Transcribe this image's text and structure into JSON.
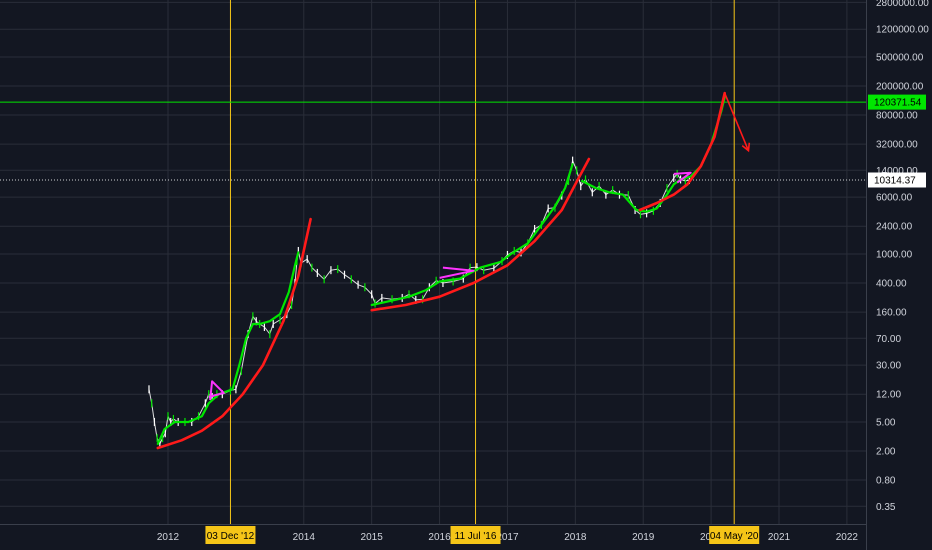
{
  "chart_data": {
    "type": "line",
    "scale": "log",
    "grid": true,
    "y_tick_labels": [
      "2800000.00",
      "1200000.00",
      "500000.00",
      "200000.00",
      "80000.00",
      "32000.00",
      "14000.00",
      "6000.00",
      "2400.00",
      "1000.00",
      "400.00",
      "160.00",
      "70.00",
      "30.00",
      "12.00",
      "5.00",
      "2.00",
      "0.80",
      "0.35"
    ],
    "x_tick_labels": [
      "2012",
      "2014",
      "2015",
      "2016",
      "2017",
      "2018",
      "2019",
      "2020",
      "2021",
      "2022"
    ],
    "x_highlight_labels": [
      {
        "label": "03 Dec '12",
        "color": "#f5c518"
      },
      {
        "label": "11 Jul '16",
        "color": "#f5c518"
      },
      {
        "label": "04 May '20",
        "color": "#f5c518"
      }
    ],
    "horizontal_levels": [
      {
        "label": "120371.54",
        "value": 120371.54,
        "color": "#00e600"
      },
      {
        "label": "10314.37",
        "value": 10314.37,
        "color": "#ffffff"
      }
    ],
    "series": [
      {
        "style": "price",
        "color": "#ffffff",
        "points": [
          [
            2011.72,
            14
          ],
          [
            2011.76,
            9
          ],
          [
            2011.8,
            5
          ],
          [
            2011.84,
            3
          ],
          [
            2011.88,
            2.5
          ],
          [
            2011.92,
            3
          ],
          [
            2011.96,
            3.5
          ],
          [
            2012.0,
            6
          ],
          [
            2012.04,
            5
          ],
          [
            2012.08,
            5.5
          ],
          [
            2012.15,
            5
          ],
          [
            2012.25,
            5
          ],
          [
            2012.35,
            5
          ],
          [
            2012.45,
            6
          ],
          [
            2012.55,
            9
          ],
          [
            2012.6,
            12
          ],
          [
            2012.65,
            11
          ],
          [
            2012.72,
            12
          ],
          [
            2012.8,
            12
          ],
          [
            2012.92,
            13.5
          ],
          [
            2013.0,
            14
          ],
          [
            2013.08,
            25
          ],
          [
            2013.18,
            80
          ],
          [
            2013.25,
            140
          ],
          [
            2013.3,
            120
          ],
          [
            2013.35,
            110
          ],
          [
            2013.42,
            100
          ],
          [
            2013.5,
            80
          ],
          [
            2013.55,
            110
          ],
          [
            2013.65,
            125
          ],
          [
            2013.75,
            150
          ],
          [
            2013.82,
            200
          ],
          [
            2013.87,
            400
          ],
          [
            2013.9,
            800
          ],
          [
            2013.92,
            1100
          ],
          [
            2013.96,
            750
          ],
          [
            2014.05,
            850
          ],
          [
            2014.12,
            650
          ],
          [
            2014.2,
            550
          ],
          [
            2014.3,
            450
          ],
          [
            2014.4,
            600
          ],
          [
            2014.5,
            620
          ],
          [
            2014.6,
            520
          ],
          [
            2014.7,
            450
          ],
          [
            2014.8,
            380
          ],
          [
            2014.9,
            350
          ],
          [
            2015.0,
            280
          ],
          [
            2015.05,
            210
          ],
          [
            2015.15,
            250
          ],
          [
            2015.3,
            240
          ],
          [
            2015.45,
            250
          ],
          [
            2015.55,
            280
          ],
          [
            2015.65,
            235
          ],
          [
            2015.75,
            240
          ],
          [
            2015.85,
            350
          ],
          [
            2015.95,
            430
          ],
          [
            2016.05,
            400
          ],
          [
            2016.2,
            420
          ],
          [
            2016.35,
            460
          ],
          [
            2016.45,
            650
          ],
          [
            2016.55,
            660
          ],
          [
            2016.65,
            600
          ],
          [
            2016.8,
            640
          ],
          [
            2016.92,
            800
          ],
          [
            2017.0,
            970
          ],
          [
            2017.1,
            1100
          ],
          [
            2017.2,
            1050
          ],
          [
            2017.3,
            1400
          ],
          [
            2017.4,
            2200
          ],
          [
            2017.5,
            2500
          ],
          [
            2017.6,
            4200
          ],
          [
            2017.7,
            4300
          ],
          [
            2017.8,
            6300
          ],
          [
            2017.9,
            10000
          ],
          [
            2017.96,
            19000
          ],
          [
            2018.02,
            14000
          ],
          [
            2018.08,
            8500
          ],
          [
            2018.15,
            10500
          ],
          [
            2018.25,
            7000
          ],
          [
            2018.35,
            8500
          ],
          [
            2018.45,
            6500
          ],
          [
            2018.55,
            7500
          ],
          [
            2018.65,
            6500
          ],
          [
            2018.78,
            6400
          ],
          [
            2018.88,
            4000
          ],
          [
            2018.96,
            3500
          ],
          [
            2019.05,
            3600
          ],
          [
            2019.15,
            3900
          ],
          [
            2019.25,
            5000
          ],
          [
            2019.35,
            8000
          ],
          [
            2019.45,
            11000
          ],
          [
            2019.5,
            12500
          ],
          [
            2019.55,
            10500
          ],
          [
            2019.62,
            10000
          ],
          [
            2019.68,
            10300
          ]
        ]
      },
      {
        "style": "trend",
        "color": "#00e600",
        "points": [
          [
            2011.85,
            2.5
          ],
          [
            2011.95,
            4
          ],
          [
            2012.1,
            5
          ],
          [
            2012.3,
            5
          ],
          [
            2012.5,
            6
          ],
          [
            2012.6,
            9
          ],
          [
            2012.75,
            12
          ],
          [
            2012.95,
            14
          ],
          [
            2013.05,
            30
          ],
          [
            2013.15,
            70
          ],
          [
            2013.25,
            110
          ],
          [
            2013.35,
            110
          ],
          [
            2013.5,
            120
          ],
          [
            2013.65,
            150
          ],
          [
            2013.78,
            300
          ],
          [
            2013.87,
            700
          ],
          [
            2013.92,
            1050
          ],
          null,
          [
            2015.0,
            200
          ],
          [
            2015.3,
            230
          ],
          [
            2015.55,
            260
          ],
          [
            2015.8,
            320
          ],
          [
            2016.0,
            420
          ],
          [
            2016.3,
            460
          ],
          [
            2016.6,
            650
          ],
          [
            2016.9,
            780
          ],
          [
            2017.05,
            1000
          ],
          [
            2017.3,
            1400
          ],
          [
            2017.5,
            2500
          ],
          [
            2017.7,
            4500
          ],
          [
            2017.85,
            8000
          ],
          [
            2017.96,
            17000
          ],
          null,
          [
            2018.1,
            10000
          ],
          [
            2018.3,
            8000
          ],
          [
            2018.5,
            7000
          ],
          [
            2018.7,
            6500
          ],
          [
            2018.9,
            4000
          ],
          [
            2019.05,
            3800
          ],
          [
            2019.2,
            4200
          ],
          [
            2019.35,
            6500
          ],
          [
            2019.45,
            9000
          ],
          [
            2019.55,
            10500
          ],
          [
            2019.7,
            11500
          ],
          [
            2019.85,
            16000
          ],
          [
            2020.0,
            32000
          ],
          [
            2020.15,
            90000
          ],
          [
            2020.2,
            140000
          ]
        ]
      },
      {
        "style": "support-curve",
        "color": "#ff1a1a",
        "points": [
          [
            2011.85,
            2.2
          ],
          [
            2012.2,
            2.8
          ],
          [
            2012.5,
            3.8
          ],
          [
            2012.8,
            6
          ],
          [
            2013.1,
            12
          ],
          [
            2013.4,
            30
          ],
          [
            2013.7,
            120
          ],
          [
            2013.92,
            500
          ],
          [
            2014.1,
            3000
          ],
          null,
          [
            2015.0,
            170
          ],
          [
            2015.5,
            200
          ],
          [
            2016.0,
            260
          ],
          [
            2016.5,
            400
          ],
          [
            2017.0,
            700
          ],
          [
            2017.4,
            1500
          ],
          [
            2017.8,
            4000
          ],
          [
            2018.0,
            9000
          ],
          [
            2018.2,
            20000
          ],
          null,
          [
            2018.95,
            4000
          ],
          [
            2019.2,
            5000
          ],
          [
            2019.45,
            6500
          ],
          [
            2019.65,
            9000
          ],
          [
            2019.85,
            16000
          ],
          [
            2020.05,
            40000
          ],
          [
            2020.2,
            160000
          ]
        ]
      },
      {
        "style": "pennant",
        "color": "#ff33ff",
        "points": [
          [
            2012.6,
            11
          ],
          [
            2012.82,
            12.5
          ],
          [
            2012.65,
            18
          ],
          [
            2012.62,
            10
          ],
          null,
          [
            2016.0,
            470
          ],
          [
            2016.5,
            590
          ],
          [
            2016.05,
            650
          ],
          null,
          [
            2019.45,
            12500
          ],
          [
            2019.7,
            13000
          ],
          [
            2019.5,
            9500
          ]
        ]
      },
      {
        "style": "projection-arrow",
        "color": "#ff1a1a",
        "points": [
          [
            2020.2,
            160000
          ],
          [
            2020.55,
            26000
          ]
        ]
      }
    ]
  }
}
